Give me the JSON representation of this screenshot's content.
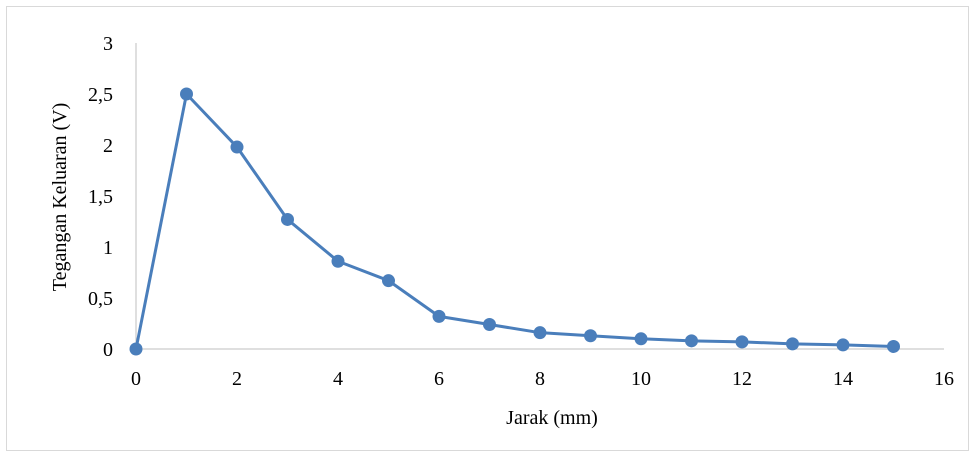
{
  "chart_data": {
    "type": "line",
    "title": "",
    "xlabel": "Jarak (mm)",
    "ylabel": "Tegangan Keluaran (V)",
    "xlim": [
      0,
      16
    ],
    "ylim": [
      0,
      3
    ],
    "x_ticks": [
      "0",
      "2",
      "4",
      "6",
      "8",
      "10",
      "12",
      "14",
      "16"
    ],
    "x_tick_values": [
      0,
      2,
      4,
      6,
      8,
      10,
      12,
      14,
      16
    ],
    "y_ticks": [
      "0",
      "0,5",
      "1",
      "1,5",
      "2",
      "2,5",
      "3"
    ],
    "y_tick_values": [
      0,
      0.5,
      1,
      1.5,
      2,
      2.5,
      3
    ],
    "grid": false,
    "legend": "none",
    "series": [
      {
        "color": "#4a7ebb",
        "x": [
          0,
          1,
          2,
          3,
          4,
          5,
          6,
          7,
          8,
          9,
          10,
          11,
          12,
          13,
          14,
          15
        ],
        "y": [
          0,
          2.5,
          1.98,
          1.27,
          0.86,
          0.67,
          0.32,
          0.24,
          0.16,
          0.13,
          0.1,
          0.08,
          0.07,
          0.05,
          0.04,
          0.025
        ]
      }
    ]
  }
}
